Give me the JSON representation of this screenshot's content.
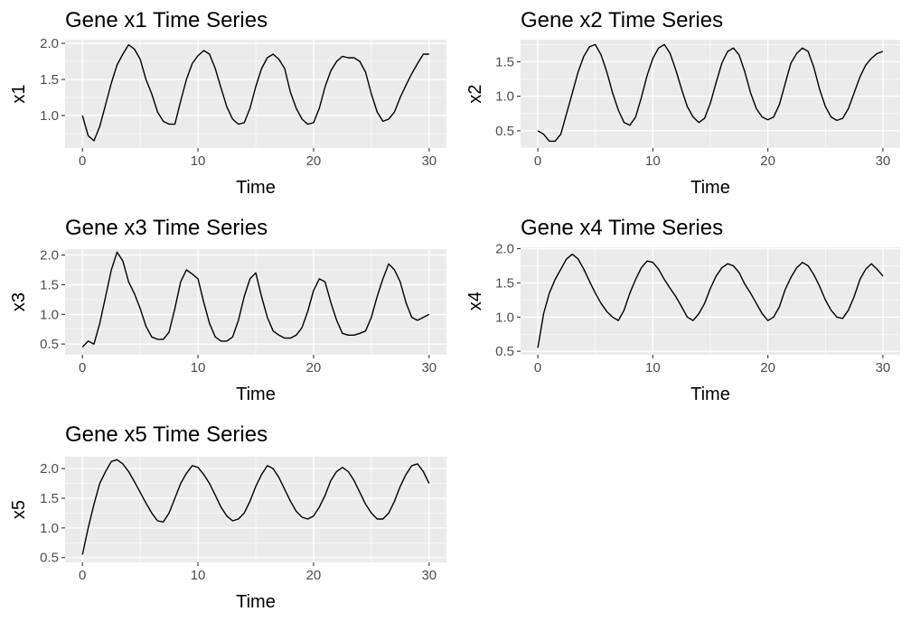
{
  "chart_data": [
    {
      "type": "line",
      "title": "Gene x1 Time Series",
      "xlabel": "Time",
      "ylabel": "x1",
      "xlim": [
        -1.5,
        31.5
      ],
      "ylim": [
        0.55,
        2.05
      ],
      "xticks": [
        0,
        10,
        20,
        30
      ],
      "xtick_labels": [
        "0",
        "10",
        "20",
        "30"
      ],
      "yticks": [
        1.0,
        1.5,
        2.0
      ],
      "ytick_labels": [
        "1.0",
        "1.5",
        "2.0"
      ],
      "grid": true,
      "series": [
        {
          "x": [
            0,
            0.5,
            1,
            1.5,
            2,
            2.5,
            3,
            3.5,
            4,
            4.5,
            5,
            5.5,
            6,
            6.5,
            7,
            7.5,
            8,
            8.5,
            9,
            9.5,
            10,
            10.5,
            11,
            11.5,
            12,
            12.5,
            13,
            13.5,
            14,
            14.5,
            15,
            15.5,
            16,
            16.5,
            17,
            17.5,
            18,
            18.5,
            19,
            19.5,
            20,
            20.5,
            21,
            21.5,
            22,
            22.5,
            23,
            23.5,
            24,
            24.5,
            25,
            25.5,
            26,
            26.5,
            27,
            27.5,
            28,
            28.5,
            29,
            29.5,
            30
          ],
          "y": [
            1.0,
            0.72,
            0.65,
            0.85,
            1.15,
            1.45,
            1.7,
            1.85,
            1.98,
            1.92,
            1.78,
            1.5,
            1.3,
            1.05,
            0.92,
            0.88,
            0.88,
            1.2,
            1.5,
            1.72,
            1.83,
            1.9,
            1.85,
            1.65,
            1.38,
            1.12,
            0.95,
            0.88,
            0.9,
            1.1,
            1.4,
            1.65,
            1.8,
            1.85,
            1.78,
            1.65,
            1.32,
            1.1,
            0.95,
            0.88,
            0.9,
            1.1,
            1.4,
            1.62,
            1.75,
            1.82,
            1.8,
            1.8,
            1.75,
            1.6,
            1.3,
            1.05,
            0.92,
            0.95,
            1.05,
            1.25,
            1.42,
            1.58,
            1.72,
            1.85,
            1.85
          ]
        }
      ]
    },
    {
      "type": "line",
      "title": "Gene x2 Time Series",
      "xlabel": "Time",
      "ylabel": "x2",
      "xlim": [
        -1.5,
        31.5
      ],
      "ylim": [
        0.25,
        1.82
      ],
      "xticks": [
        0,
        10,
        20,
        30
      ],
      "xtick_labels": [
        "0",
        "10",
        "20",
        "30"
      ],
      "yticks": [
        0.5,
        1.0,
        1.5
      ],
      "ytick_labels": [
        "0.5",
        "1.0",
        "1.5"
      ],
      "grid": true,
      "series": [
        {
          "x": [
            0,
            0.5,
            1,
            1.5,
            2,
            2.5,
            3,
            3.5,
            4,
            4.5,
            5,
            5.5,
            6,
            6.5,
            7,
            7.5,
            8,
            8.5,
            9,
            9.5,
            10,
            10.5,
            11,
            11.5,
            12,
            12.5,
            13,
            13.5,
            14,
            14.5,
            15,
            15.5,
            16,
            16.5,
            17,
            17.5,
            18,
            18.5,
            19,
            19.5,
            20,
            20.5,
            21,
            21.5,
            22,
            22.5,
            23,
            23.5,
            24,
            24.5,
            25,
            25.5,
            26,
            26.5,
            27,
            27.5,
            28,
            28.5,
            29,
            29.5,
            30
          ],
          "y": [
            0.5,
            0.45,
            0.35,
            0.35,
            0.45,
            0.75,
            1.05,
            1.35,
            1.58,
            1.72,
            1.75,
            1.6,
            1.35,
            1.05,
            0.8,
            0.62,
            0.58,
            0.7,
            0.98,
            1.3,
            1.55,
            1.7,
            1.75,
            1.62,
            1.38,
            1.1,
            0.85,
            0.7,
            0.62,
            0.68,
            0.9,
            1.2,
            1.48,
            1.65,
            1.7,
            1.6,
            1.35,
            1.05,
            0.82,
            0.7,
            0.66,
            0.7,
            0.88,
            1.18,
            1.48,
            1.62,
            1.7,
            1.65,
            1.42,
            1.1,
            0.85,
            0.7,
            0.65,
            0.68,
            0.82,
            1.05,
            1.28,
            1.45,
            1.55,
            1.62,
            1.65
          ]
        }
      ]
    },
    {
      "type": "line",
      "title": "Gene x3 Time Series",
      "xlabel": "Time",
      "ylabel": "x3",
      "xlim": [
        -1.5,
        31.5
      ],
      "ylim": [
        0.32,
        2.1
      ],
      "xticks": [
        0,
        10,
        20,
        30
      ],
      "xtick_labels": [
        "0",
        "10",
        "20",
        "30"
      ],
      "yticks": [
        0.5,
        1.0,
        1.5,
        2.0
      ],
      "ytick_labels": [
        "0.5",
        "1.0",
        "1.5",
        "2.0"
      ],
      "grid": true,
      "series": [
        {
          "x": [
            0,
            0.5,
            1,
            1.5,
            2,
            2.5,
            3,
            3.5,
            4,
            4.5,
            5,
            5.5,
            6,
            6.5,
            7,
            7.5,
            8,
            8.5,
            9,
            9.5,
            10,
            10.5,
            11,
            11.5,
            12,
            12.5,
            13,
            13.5,
            14,
            14.5,
            15,
            15.5,
            16,
            16.5,
            17,
            17.5,
            18,
            18.5,
            19,
            19.5,
            20,
            20.5,
            21,
            21.5,
            22,
            22.5,
            23,
            23.5,
            24,
            24.5,
            25,
            25.5,
            26,
            26.5,
            27,
            27.5,
            28,
            28.5,
            29,
            29.5,
            30
          ],
          "y": [
            0.45,
            0.55,
            0.5,
            0.85,
            1.3,
            1.75,
            2.05,
            1.9,
            1.55,
            1.35,
            1.1,
            0.8,
            0.62,
            0.58,
            0.58,
            0.7,
            1.1,
            1.55,
            1.75,
            1.68,
            1.6,
            1.2,
            0.85,
            0.62,
            0.55,
            0.55,
            0.62,
            0.9,
            1.3,
            1.6,
            1.7,
            1.3,
            0.95,
            0.72,
            0.65,
            0.6,
            0.6,
            0.65,
            0.78,
            1.05,
            1.4,
            1.6,
            1.55,
            1.2,
            0.9,
            0.68,
            0.65,
            0.65,
            0.68,
            0.72,
            0.95,
            1.3,
            1.6,
            1.85,
            1.75,
            1.55,
            1.2,
            0.95,
            0.9,
            0.95,
            1.0
          ]
        }
      ]
    },
    {
      "type": "line",
      "title": "Gene x4 Time Series",
      "xlabel": "Time",
      "ylabel": "x4",
      "xlim": [
        -1.5,
        31.5
      ],
      "ylim": [
        0.45,
        2.02
      ],
      "xticks": [
        0,
        10,
        20,
        30
      ],
      "xtick_labels": [
        "0",
        "10",
        "20",
        "30"
      ],
      "yticks": [
        0.5,
        1.0,
        1.5,
        2.0
      ],
      "ytick_labels": [
        "0.5",
        "1.0",
        "1.5",
        "2.0"
      ],
      "grid": true,
      "series": [
        {
          "x": [
            0,
            0.5,
            1,
            1.5,
            2,
            2.5,
            3,
            3.5,
            4,
            4.5,
            5,
            5.5,
            6,
            6.5,
            7,
            7.5,
            8,
            8.5,
            9,
            9.5,
            10,
            10.5,
            11,
            11.5,
            12,
            12.5,
            13,
            13.5,
            14,
            14.5,
            15,
            15.5,
            16,
            16.5,
            17,
            17.5,
            18,
            18.5,
            19,
            19.5,
            20,
            20.5,
            21,
            21.5,
            22,
            22.5,
            23,
            23.5,
            24,
            24.5,
            25,
            25.5,
            26,
            26.5,
            27,
            27.5,
            28,
            28.5,
            29,
            29.5,
            30
          ],
          "y": [
            0.55,
            1.05,
            1.35,
            1.55,
            1.7,
            1.85,
            1.92,
            1.85,
            1.7,
            1.52,
            1.35,
            1.2,
            1.08,
            1.0,
            0.95,
            1.1,
            1.35,
            1.55,
            1.72,
            1.82,
            1.8,
            1.7,
            1.55,
            1.42,
            1.3,
            1.15,
            1.0,
            0.95,
            1.05,
            1.2,
            1.42,
            1.6,
            1.72,
            1.78,
            1.75,
            1.65,
            1.48,
            1.35,
            1.2,
            1.05,
            0.95,
            1.0,
            1.15,
            1.4,
            1.58,
            1.72,
            1.8,
            1.75,
            1.62,
            1.45,
            1.25,
            1.1,
            1.0,
            0.98,
            1.1,
            1.3,
            1.55,
            1.7,
            1.78,
            1.7,
            1.6
          ]
        }
      ]
    },
    {
      "type": "line",
      "title": "Gene x5 Time Series",
      "xlabel": "Time",
      "ylabel": "x5",
      "xlim": [
        -1.5,
        31.5
      ],
      "ylim": [
        0.42,
        2.2
      ],
      "xticks": [
        0,
        10,
        20,
        30
      ],
      "xtick_labels": [
        "0",
        "10",
        "20",
        "30"
      ],
      "yticks": [
        0.5,
        1.0,
        1.5,
        2.0
      ],
      "ytick_labels": [
        "0.5",
        "1.0",
        "1.5",
        "2.0"
      ],
      "grid": true,
      "series": [
        {
          "x": [
            0,
            0.5,
            1,
            1.5,
            2,
            2.5,
            3,
            3.5,
            4,
            4.5,
            5,
            5.5,
            6,
            6.5,
            7,
            7.5,
            8,
            8.5,
            9,
            9.5,
            10,
            10.5,
            11,
            11.5,
            12,
            12.5,
            13,
            13.5,
            14,
            14.5,
            15,
            15.5,
            16,
            16.5,
            17,
            17.5,
            18,
            18.5,
            19,
            19.5,
            20,
            20.5,
            21,
            21.5,
            22,
            22.5,
            23,
            23.5,
            24,
            24.5,
            25,
            25.5,
            26,
            26.5,
            27,
            27.5,
            28,
            28.5,
            29,
            29.5,
            30
          ],
          "y": [
            0.55,
            1.0,
            1.4,
            1.75,
            1.95,
            2.12,
            2.15,
            2.08,
            1.95,
            1.78,
            1.6,
            1.42,
            1.25,
            1.12,
            1.1,
            1.25,
            1.5,
            1.75,
            1.92,
            2.05,
            2.02,
            1.9,
            1.75,
            1.55,
            1.35,
            1.2,
            1.12,
            1.15,
            1.25,
            1.45,
            1.7,
            1.9,
            2.05,
            2.0,
            1.85,
            1.65,
            1.45,
            1.28,
            1.18,
            1.15,
            1.2,
            1.35,
            1.55,
            1.8,
            1.95,
            2.02,
            1.95,
            1.8,
            1.6,
            1.4,
            1.25,
            1.15,
            1.15,
            1.25,
            1.45,
            1.7,
            1.9,
            2.05,
            2.08,
            1.95,
            1.75
          ]
        }
      ]
    }
  ]
}
